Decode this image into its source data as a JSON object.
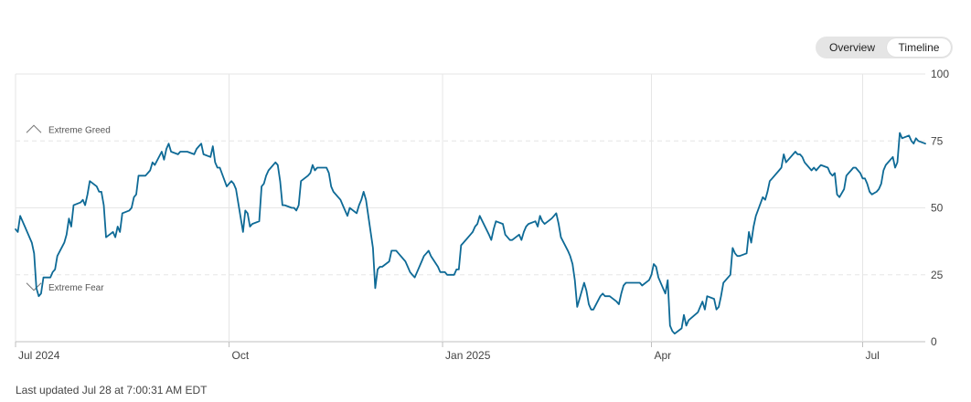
{
  "toggle": {
    "overview_label": "Overview",
    "timeline_label": "Timeline"
  },
  "footer": {
    "updated": "Last updated Jul 28 at 7:00:31 AM EDT"
  },
  "colors": {
    "line": "#0e6a96",
    "grid": "#e6e6e6",
    "axis": "#444444"
  },
  "chart_data": {
    "type": "line",
    "x_range": [
      "2024-07-01",
      "2025-07-28"
    ],
    "ylim": [
      0,
      100
    ],
    "y_ticks": [
      0,
      25,
      50,
      75,
      100
    ],
    "x_ticks": [
      {
        "label": "Jul 2024",
        "date": "2024-07-01"
      },
      {
        "label": "Oct",
        "date": "2024-10-01"
      },
      {
        "label": "Jan 2025",
        "date": "2025-01-01"
      },
      {
        "label": "Apr",
        "date": "2025-04-01"
      },
      {
        "label": "Jul",
        "date": "2025-07-01"
      }
    ],
    "zones": [
      {
        "label": "Extreme Greed",
        "value": 75,
        "marker": "up"
      },
      {
        "label": "Extreme Fear",
        "value": 25,
        "marker": "down"
      }
    ],
    "grid": true,
    "series": [
      {
        "points": [
          [
            "2024-07-01",
            42
          ],
          [
            "2024-07-02",
            41
          ],
          [
            "2024-07-03",
            47
          ],
          [
            "2024-07-05",
            43
          ],
          [
            "2024-07-08",
            37
          ],
          [
            "2024-07-09",
            33
          ],
          [
            "2024-07-10",
            20
          ],
          [
            "2024-07-11",
            17
          ],
          [
            "2024-07-12",
            18
          ],
          [
            "2024-07-13",
            24
          ],
          [
            "2024-07-15",
            24
          ],
          [
            "2024-07-16",
            24
          ],
          [
            "2024-07-17",
            26
          ],
          [
            "2024-07-18",
            27
          ],
          [
            "2024-07-19",
            32
          ],
          [
            "2024-07-22",
            37
          ],
          [
            "2024-07-23",
            40
          ],
          [
            "2024-07-24",
            46
          ],
          [
            "2024-07-25",
            43
          ],
          [
            "2024-07-26",
            51
          ],
          [
            "2024-07-29",
            52
          ],
          [
            "2024-07-30",
            53
          ],
          [
            "2024-07-31",
            51
          ],
          [
            "2024-08-01",
            55
          ],
          [
            "2024-08-02",
            60
          ],
          [
            "2024-08-05",
            58
          ],
          [
            "2024-08-06",
            56
          ],
          [
            "2024-08-07",
            56
          ],
          [
            "2024-08-08",
            51
          ],
          [
            "2024-08-09",
            39
          ],
          [
            "2024-08-12",
            41
          ],
          [
            "2024-08-13",
            39
          ],
          [
            "2024-08-14",
            43
          ],
          [
            "2024-08-15",
            41
          ],
          [
            "2024-08-16",
            48
          ],
          [
            "2024-08-19",
            49
          ],
          [
            "2024-08-20",
            50
          ],
          [
            "2024-08-21",
            54
          ],
          [
            "2024-08-22",
            55
          ],
          [
            "2024-08-23",
            62
          ],
          [
            "2024-08-26",
            62
          ],
          [
            "2024-08-27",
            63
          ],
          [
            "2024-08-28",
            64
          ],
          [
            "2024-08-29",
            67
          ],
          [
            "2024-08-30",
            66
          ],
          [
            "2024-09-02",
            71
          ],
          [
            "2024-09-03",
            68
          ],
          [
            "2024-09-04",
            72
          ],
          [
            "2024-09-05",
            74
          ],
          [
            "2024-09-06",
            71
          ],
          [
            "2024-09-09",
            70
          ],
          [
            "2024-09-10",
            71
          ],
          [
            "2024-09-11",
            71
          ],
          [
            "2024-09-12",
            71
          ],
          [
            "2024-09-13",
            71
          ],
          [
            "2024-09-16",
            70
          ],
          [
            "2024-09-17",
            72
          ],
          [
            "2024-09-18",
            73
          ],
          [
            "2024-09-19",
            74
          ],
          [
            "2024-09-20",
            70
          ],
          [
            "2024-09-23",
            69
          ],
          [
            "2024-09-24",
            73
          ],
          [
            "2024-09-25",
            67
          ],
          [
            "2024-09-26",
            65
          ],
          [
            "2024-09-27",
            65
          ],
          [
            "2024-09-30",
            58
          ],
          [
            "2024-10-01",
            59
          ],
          [
            "2024-10-02",
            60
          ],
          [
            "2024-10-03",
            59
          ],
          [
            "2024-10-04",
            57
          ],
          [
            "2024-10-07",
            41
          ],
          [
            "2024-10-08",
            49
          ],
          [
            "2024-10-09",
            48
          ],
          [
            "2024-10-10",
            43
          ],
          [
            "2024-10-11",
            44
          ],
          [
            "2024-10-14",
            45
          ],
          [
            "2024-10-15",
            58
          ],
          [
            "2024-10-16",
            59
          ],
          [
            "2024-10-17",
            62
          ],
          [
            "2024-10-18",
            64
          ],
          [
            "2024-10-21",
            67
          ],
          [
            "2024-10-22",
            66
          ],
          [
            "2024-10-23",
            60
          ],
          [
            "2024-10-24",
            51
          ],
          [
            "2024-10-25",
            51
          ],
          [
            "2024-10-28",
            50
          ],
          [
            "2024-10-29",
            50
          ],
          [
            "2024-10-30",
            49
          ],
          [
            "2024-10-31",
            51
          ],
          [
            "2024-11-01",
            60
          ],
          [
            "2024-11-04",
            62
          ],
          [
            "2024-11-05",
            63
          ],
          [
            "2024-11-06",
            66
          ],
          [
            "2024-11-07",
            64
          ],
          [
            "2024-11-08",
            65
          ],
          [
            "2024-11-11",
            65
          ],
          [
            "2024-11-12",
            65
          ],
          [
            "2024-11-13",
            63
          ],
          [
            "2024-11-14",
            58
          ],
          [
            "2024-11-15",
            56
          ],
          [
            "2024-11-18",
            53
          ],
          [
            "2024-11-19",
            51
          ],
          [
            "2024-11-20",
            49
          ],
          [
            "2024-11-21",
            47
          ],
          [
            "2024-11-22",
            50
          ],
          [
            "2024-11-25",
            48
          ],
          [
            "2024-11-26",
            51
          ],
          [
            "2024-11-27",
            53
          ],
          [
            "2024-11-28",
            56
          ],
          [
            "2024-11-29",
            53
          ],
          [
            "2024-12-02",
            35
          ],
          [
            "2024-12-03",
            20
          ],
          [
            "2024-12-04",
            27
          ],
          [
            "2024-12-05",
            28
          ],
          [
            "2024-12-06",
            28
          ],
          [
            "2024-12-09",
            30
          ],
          [
            "2024-12-10",
            34
          ],
          [
            "2024-12-11",
            34
          ],
          [
            "2024-12-12",
            34
          ],
          [
            "2024-12-13",
            33
          ],
          [
            "2024-12-16",
            30
          ],
          [
            "2024-12-17",
            28
          ],
          [
            "2024-12-18",
            26
          ],
          [
            "2024-12-19",
            25
          ],
          [
            "2024-12-20",
            24
          ],
          [
            "2024-12-23",
            30
          ],
          [
            "2024-12-24",
            32
          ],
          [
            "2024-12-25",
            33
          ],
          [
            "2024-12-26",
            34
          ],
          [
            "2024-12-27",
            32
          ],
          [
            "2024-12-30",
            28
          ],
          [
            "2024-12-31",
            26
          ],
          [
            "2025-01-02",
            26
          ],
          [
            "2025-01-03",
            25
          ],
          [
            "2025-01-06",
            25
          ],
          [
            "2025-01-07",
            27
          ],
          [
            "2025-01-08",
            27
          ],
          [
            "2025-01-09",
            36
          ],
          [
            "2025-01-10",
            37
          ],
          [
            "2025-01-13",
            40
          ],
          [
            "2025-01-14",
            41
          ],
          [
            "2025-01-15",
            43
          ],
          [
            "2025-01-16",
            44
          ],
          [
            "2025-01-17",
            47
          ],
          [
            "2025-01-21",
            40
          ],
          [
            "2025-01-22",
            38
          ],
          [
            "2025-01-23",
            42
          ],
          [
            "2025-01-24",
            45
          ],
          [
            "2025-01-27",
            44
          ],
          [
            "2025-01-28",
            40
          ],
          [
            "2025-01-29",
            39
          ],
          [
            "2025-01-30",
            38
          ],
          [
            "2025-01-31",
            38
          ],
          [
            "2025-02-03",
            40
          ],
          [
            "2025-02-04",
            38
          ],
          [
            "2025-02-05",
            41
          ],
          [
            "2025-02-06",
            43
          ],
          [
            "2025-02-07",
            44
          ],
          [
            "2025-02-10",
            45
          ],
          [
            "2025-02-11",
            43
          ],
          [
            "2025-02-12",
            47
          ],
          [
            "2025-02-13",
            45
          ],
          [
            "2025-02-14",
            44
          ],
          [
            "2025-02-17",
            46
          ],
          [
            "2025-02-18",
            47
          ],
          [
            "2025-02-19",
            48
          ],
          [
            "2025-02-20",
            44
          ],
          [
            "2025-02-21",
            39
          ],
          [
            "2025-02-24",
            34
          ],
          [
            "2025-02-25",
            32
          ],
          [
            "2025-02-26",
            29
          ],
          [
            "2025-02-27",
            23
          ],
          [
            "2025-02-28",
            13
          ],
          [
            "2025-03-03",
            22
          ],
          [
            "2025-03-04",
            19
          ],
          [
            "2025-03-05",
            14
          ],
          [
            "2025-03-06",
            12
          ],
          [
            "2025-03-07",
            12
          ],
          [
            "2025-03-10",
            17
          ],
          [
            "2025-03-11",
            18
          ],
          [
            "2025-03-12",
            17
          ],
          [
            "2025-03-13",
            17
          ],
          [
            "2025-03-14",
            17
          ],
          [
            "2025-03-17",
            15
          ],
          [
            "2025-03-18",
            14
          ],
          [
            "2025-03-19",
            18
          ],
          [
            "2025-03-20",
            21
          ],
          [
            "2025-03-21",
            22
          ],
          [
            "2025-03-24",
            22
          ],
          [
            "2025-03-25",
            22
          ],
          [
            "2025-03-26",
            22
          ],
          [
            "2025-03-27",
            22
          ],
          [
            "2025-03-28",
            21
          ],
          [
            "2025-03-31",
            23
          ],
          [
            "2025-04-01",
            25
          ],
          [
            "2025-04-02",
            29
          ],
          [
            "2025-04-03",
            28
          ],
          [
            "2025-04-04",
            24
          ],
          [
            "2025-04-07",
            18
          ],
          [
            "2025-04-08",
            23
          ],
          [
            "2025-04-09",
            6
          ],
          [
            "2025-04-10",
            4
          ],
          [
            "2025-04-11",
            3
          ],
          [
            "2025-04-14",
            5
          ],
          [
            "2025-04-15",
            10
          ],
          [
            "2025-04-16",
            6
          ],
          [
            "2025-04-17",
            8
          ],
          [
            "2025-04-21",
            11
          ],
          [
            "2025-04-22",
            13
          ],
          [
            "2025-04-23",
            15
          ],
          [
            "2025-04-24",
            12
          ],
          [
            "2025-04-25",
            17
          ],
          [
            "2025-04-28",
            16
          ],
          [
            "2025-04-29",
            12
          ],
          [
            "2025-04-30",
            13
          ],
          [
            "2025-05-01",
            17
          ],
          [
            "2025-05-02",
            22
          ],
          [
            "2025-05-05",
            25
          ],
          [
            "2025-05-06",
            35
          ],
          [
            "2025-05-07",
            33
          ],
          [
            "2025-05-08",
            32
          ],
          [
            "2025-05-09",
            32
          ],
          [
            "2025-05-12",
            33
          ],
          [
            "2025-05-13",
            41
          ],
          [
            "2025-05-14",
            37
          ],
          [
            "2025-05-15",
            43
          ],
          [
            "2025-05-16",
            47
          ],
          [
            "2025-05-19",
            54
          ],
          [
            "2025-05-20",
            53
          ],
          [
            "2025-05-21",
            56
          ],
          [
            "2025-05-22",
            60
          ],
          [
            "2025-05-23",
            61
          ],
          [
            "2025-05-26",
            64
          ],
          [
            "2025-05-27",
            65
          ],
          [
            "2025-05-28",
            70
          ],
          [
            "2025-05-29",
            67
          ],
          [
            "2025-05-30",
            68
          ],
          [
            "2025-06-02",
            71
          ],
          [
            "2025-06-03",
            70
          ],
          [
            "2025-06-04",
            70
          ],
          [
            "2025-06-05",
            69
          ],
          [
            "2025-06-06",
            67
          ],
          [
            "2025-06-09",
            64
          ],
          [
            "2025-06-10",
            65
          ],
          [
            "2025-06-11",
            64
          ],
          [
            "2025-06-12",
            65
          ],
          [
            "2025-06-13",
            66
          ],
          [
            "2025-06-16",
            65
          ],
          [
            "2025-06-17",
            63
          ],
          [
            "2025-06-18",
            62
          ],
          [
            "2025-06-19",
            63
          ],
          [
            "2025-06-20",
            55
          ],
          [
            "2025-06-21",
            54
          ],
          [
            "2025-06-23",
            57
          ],
          [
            "2025-06-24",
            62
          ],
          [
            "2025-06-25",
            63
          ],
          [
            "2025-06-26",
            64
          ],
          [
            "2025-06-27",
            65
          ],
          [
            "2025-06-28",
            65
          ],
          [
            "2025-06-30",
            63
          ],
          [
            "2025-07-01",
            61
          ],
          [
            "2025-07-02",
            61
          ],
          [
            "2025-07-03",
            59
          ],
          [
            "2025-07-04",
            56
          ],
          [
            "2025-07-05",
            55
          ],
          [
            "2025-07-07",
            56
          ],
          [
            "2025-07-08",
            57
          ],
          [
            "2025-07-09",
            59
          ],
          [
            "2025-07-10",
            64
          ],
          [
            "2025-07-11",
            66
          ],
          [
            "2025-07-14",
            69
          ],
          [
            "2025-07-15",
            65
          ],
          [
            "2025-07-16",
            67
          ],
          [
            "2025-07-17",
            78
          ],
          [
            "2025-07-18",
            76
          ],
          [
            "2025-07-21",
            77
          ],
          [
            "2025-07-22",
            75
          ],
          [
            "2025-07-23",
            74
          ],
          [
            "2025-07-24",
            76
          ],
          [
            "2025-07-25",
            75
          ],
          [
            "2025-07-28",
            74
          ]
        ]
      }
    ]
  }
}
